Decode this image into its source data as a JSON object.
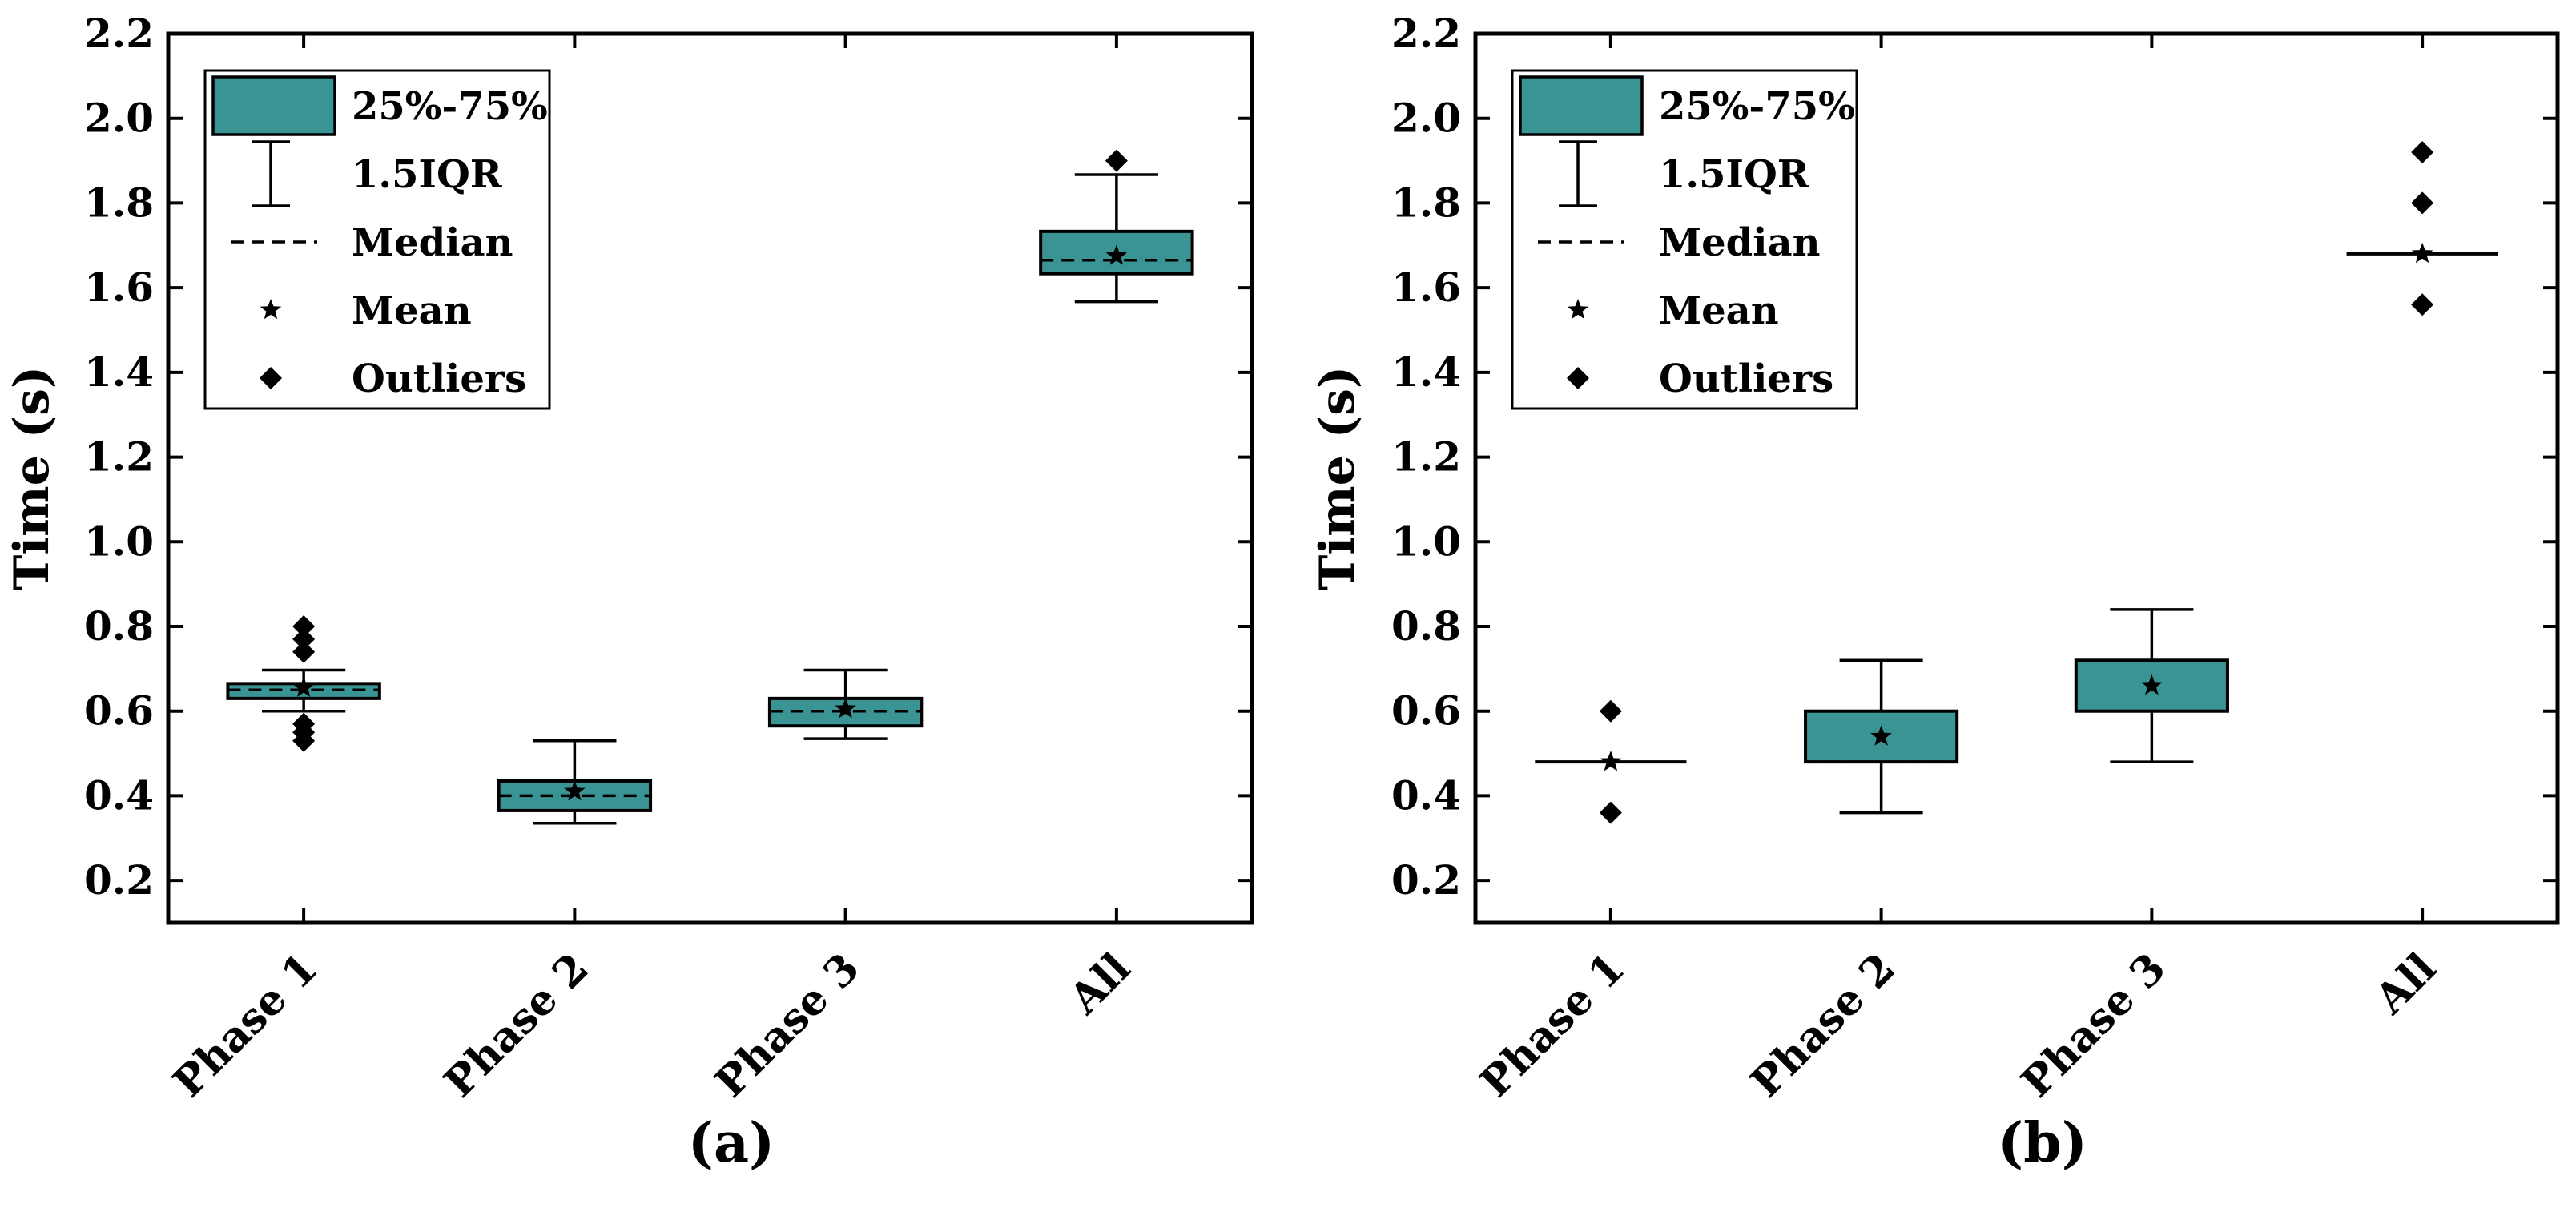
{
  "colors": {
    "box_fill": "#3a9494",
    "stroke": "#000000",
    "background": "#ffffff"
  },
  "legend_items": {
    "box": "25%-75%",
    "whisker": "1.5IQR",
    "median": "Median",
    "mean": "Mean",
    "outliers": "Outliers"
  },
  "chart_data": [
    {
      "type": "box",
      "panel_label": "(a)",
      "ylabel": "Time (s)",
      "ylim": [
        0.1,
        2.2
      ],
      "yticks": [
        0.2,
        0.4,
        0.6,
        0.8,
        1.0,
        1.2,
        1.4,
        1.6,
        1.8,
        2.0,
        2.2
      ],
      "ytick_labels": [
        "0.2",
        "0.4",
        "0.6",
        "0.8",
        "1.0",
        "1.2",
        "1.4",
        "1.6",
        "1.8",
        "2.0",
        "2.2"
      ],
      "legend_position": "top-left",
      "categories": [
        "Phase 1",
        "Phase 2",
        "Phase 3",
        "All"
      ],
      "boxes": [
        {
          "category": "Phase 1",
          "q1": 0.63,
          "q3": 0.665,
          "median": 0.65,
          "mean": 0.655,
          "whisker_low": 0.6,
          "whisker_high": 0.697,
          "outliers": [
            0.53,
            0.55,
            0.57,
            0.74,
            0.77,
            0.8
          ]
        },
        {
          "category": "Phase 2",
          "q1": 0.365,
          "q3": 0.435,
          "median": 0.4,
          "mean": 0.41,
          "whisker_low": 0.335,
          "whisker_high": 0.53,
          "outliers": []
        },
        {
          "category": "Phase 3",
          "q1": 0.565,
          "q3": 0.63,
          "median": 0.6,
          "mean": 0.605,
          "whisker_low": 0.535,
          "whisker_high": 0.697,
          "outliers": []
        },
        {
          "category": "All",
          "q1": 1.633,
          "q3": 1.733,
          "median": 1.665,
          "mean": 1.675,
          "whisker_low": 1.567,
          "whisker_high": 1.867,
          "outliers": [
            1.9
          ]
        }
      ]
    },
    {
      "type": "box",
      "panel_label": "(b)",
      "ylabel": "Time (s)",
      "ylim": [
        0.1,
        2.2
      ],
      "yticks": [
        0.2,
        0.4,
        0.6,
        0.8,
        1.0,
        1.2,
        1.4,
        1.6,
        1.8,
        2.0,
        2.2
      ],
      "ytick_labels": [
        "0.2",
        "0.4",
        "0.6",
        "0.8",
        "1.0",
        "1.2",
        "1.4",
        "1.6",
        "1.8",
        "2.0",
        "2.2"
      ],
      "legend_position": "top-left",
      "categories": [
        "Phase 1",
        "Phase 2",
        "Phase 3",
        "All"
      ],
      "boxes": [
        {
          "category": "Phase 1",
          "q1": 0.48,
          "q3": 0.48,
          "median": 0.48,
          "mean": 0.48,
          "whisker_low": 0.48,
          "whisker_high": 0.48,
          "outliers": [
            0.36,
            0.6
          ]
        },
        {
          "category": "Phase 2",
          "q1": 0.48,
          "q3": 0.6,
          "median": 0.48,
          "mean": 0.54,
          "whisker_low": 0.36,
          "whisker_high": 0.72,
          "outliers": []
        },
        {
          "category": "Phase 3",
          "q1": 0.6,
          "q3": 0.72,
          "median": 0.6,
          "mean": 0.66,
          "whisker_low": 0.48,
          "whisker_high": 0.84,
          "outliers": []
        },
        {
          "category": "All",
          "q1": 1.68,
          "q3": 1.68,
          "median": 1.68,
          "mean": 1.68,
          "whisker_low": 1.68,
          "whisker_high": 1.68,
          "outliers": [
            1.56,
            1.8,
            1.92
          ]
        }
      ]
    }
  ]
}
